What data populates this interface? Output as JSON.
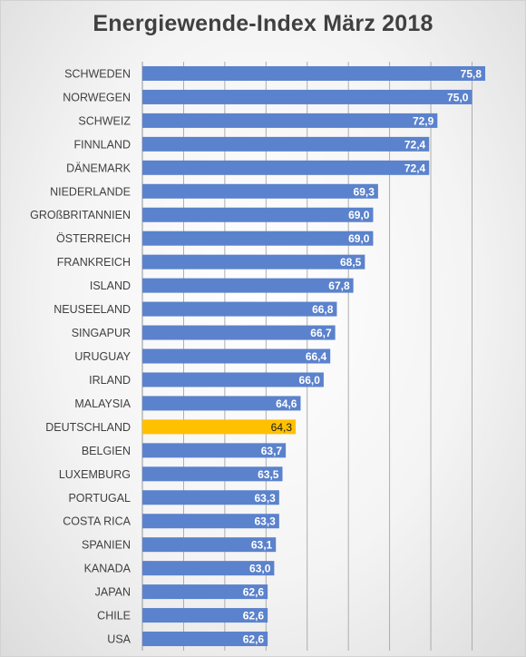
{
  "chart_data": {
    "type": "bar",
    "orientation": "horizontal",
    "title": "Energiewende-Index März 2018",
    "xlabel": "",
    "ylabel": "",
    "xlim": [
      55,
      78
    ],
    "grid": true,
    "legend": "none",
    "categories": [
      "SCHWEDEN",
      "NORWEGEN",
      "SCHWEIZ",
      "FINNLAND",
      "DÄNEMARK",
      "NIEDERLANDE",
      "GROßBRITANNIEN",
      "ÖSTERREICH",
      "FRANKREICH",
      "ISLAND",
      "NEUSEELAND",
      "SINGAPUR",
      "URUGUAY",
      "IRLAND",
      "MALAYSIA",
      "DEUTSCHLAND",
      "BELGIEN",
      "LUXEMBURG",
      "PORTUGAL",
      "COSTA RICA",
      "SPANIEN",
      "KANADA",
      "JAPAN",
      "CHILE",
      "USA"
    ],
    "values": [
      75.8,
      75.0,
      72.9,
      72.4,
      72.4,
      69.3,
      69.0,
      69.0,
      68.5,
      67.8,
      66.8,
      66.7,
      66.4,
      66.0,
      64.6,
      64.3,
      63.7,
      63.5,
      63.3,
      63.3,
      63.1,
      63.0,
      62.6,
      62.6,
      62.6
    ],
    "value_labels": [
      "75,8",
      "75,0",
      "72,9",
      "72,4",
      "72,4",
      "69,3",
      "69,0",
      "69,0",
      "68,5",
      "67,8",
      "66,8",
      "66,7",
      "66,4",
      "66,0",
      "64,6",
      "64,3",
      "63,7",
      "63,5",
      "63,3",
      "63,3",
      "63,1",
      "63,0",
      "62,6",
      "62,6",
      "62,6"
    ],
    "highlight_category": "DEUTSCHLAND",
    "colors": {
      "bar": "#5b82cc",
      "bar_highlight": "#ffc000",
      "label_default": "#ffffff",
      "label_highlight": "#1a1a1a",
      "grid": "#a6a6a6",
      "category_text": "#404040"
    }
  }
}
